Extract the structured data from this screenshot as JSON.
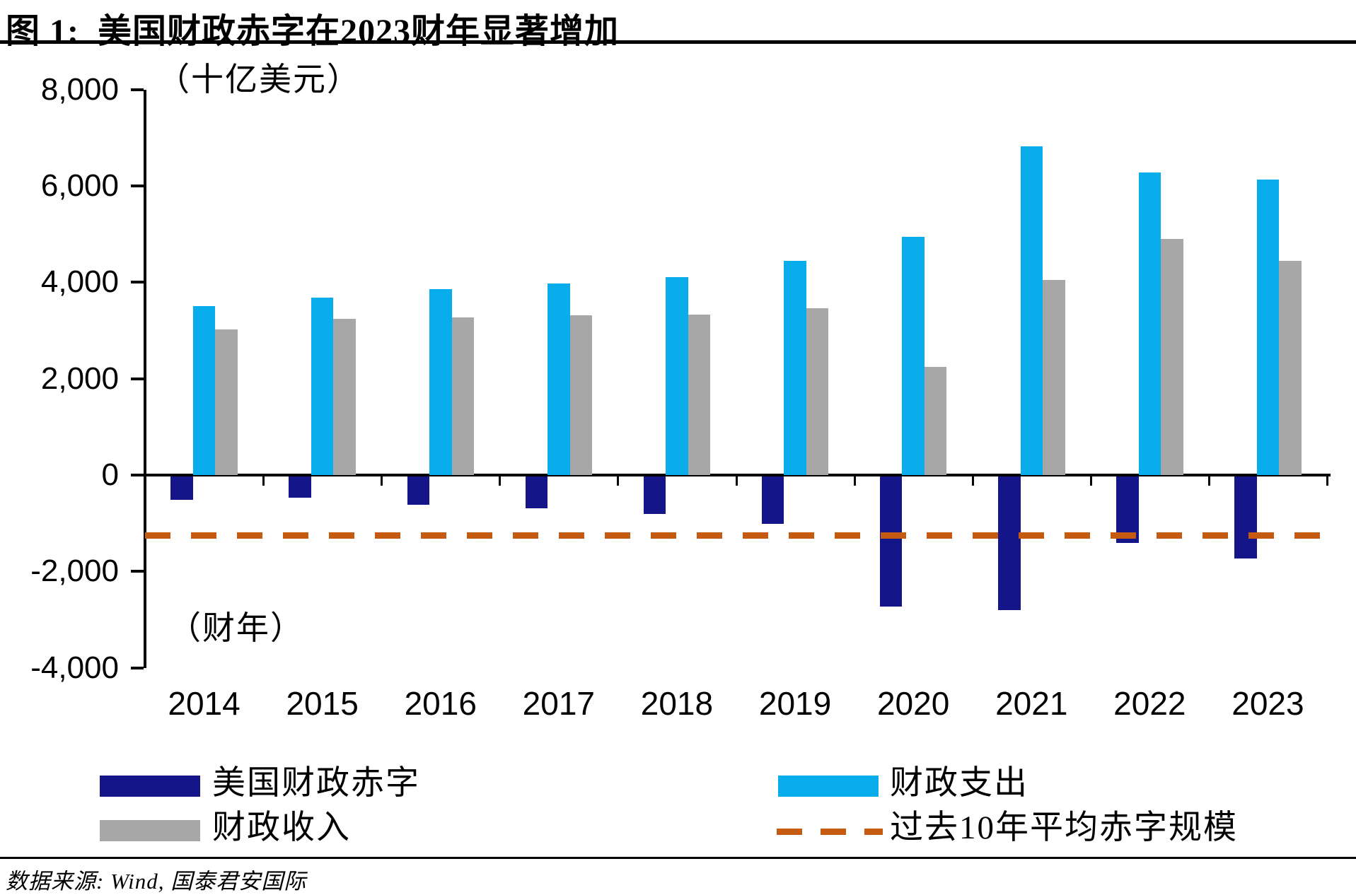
{
  "title": {
    "prefix": "图 1:",
    "text": "美国财政赤字在2023财年显著增加"
  },
  "chart_data": {
    "type": "bar",
    "title": "美国财政赤字在2023财年显著增加",
    "unit_label": "（十亿美元）",
    "x_axis_label": "（财年）",
    "categories": [
      "2014",
      "2015",
      "2016",
      "2017",
      "2018",
      "2019",
      "2020",
      "2021",
      "2022",
      "2023"
    ],
    "series": [
      {
        "key": "deficit",
        "name": "美国财政赤字",
        "color": "#15158A",
        "values": [
          -485,
          -438,
          -585,
          -665,
          -779,
          -984,
          -2700,
          -2776,
          -1375,
          -1695
        ]
      },
      {
        "key": "expenditure",
        "name": "财政支出",
        "color": "#09ADEC",
        "values": [
          3506,
          3688,
          3853,
          3982,
          4109,
          4447,
          4950,
          6822,
          6273,
          6134
        ]
      },
      {
        "key": "revenue",
        "name": "财政收入",
        "color": "#A7A7A7",
        "values": [
          3021,
          3250,
          3268,
          3316,
          3330,
          3463,
          2250,
          4047,
          4897,
          4439
        ]
      }
    ],
    "average_line": {
      "name": "过去10年平均赤字规模",
      "style": "dashed",
      "color": "#C55A11",
      "value": -1248
    },
    "ylim": [
      -4000,
      8000
    ],
    "y_tick_step": 2000,
    "y_ticks": [
      "8,000",
      "6,000",
      "4,000",
      "2,000",
      "0",
      "-2,000",
      "-4,000"
    ],
    "grid": "off",
    "legend_position": "bottom"
  },
  "legend": {
    "left_column": [
      {
        "series": "deficit"
      },
      {
        "series": "revenue"
      }
    ],
    "right_column": [
      {
        "series": "expenditure"
      },
      {
        "series": "average_line"
      }
    ]
  },
  "source": {
    "text": "数据来源: Wind, 国泰君安国际"
  }
}
